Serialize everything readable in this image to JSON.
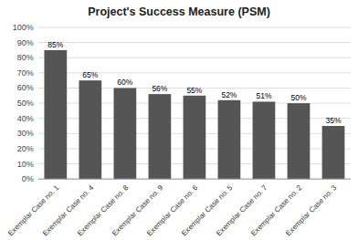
{
  "chart_data": {
    "type": "bar",
    "title": "Project's Success Measure (PSM)",
    "categories": [
      "Exemplar Case no. 1",
      "Exemplar Case no. 4",
      "Exemplar Case no. 8",
      "Exemplar Case no. 9",
      "Exemplar Case no. 6",
      "Exemplar Case no. 5",
      "Exemplar Case no. 7",
      "Exemplar Case no. 2",
      "Exemplar Case no. 3"
    ],
    "values": [
      85,
      65,
      60,
      56,
      55,
      52,
      51,
      50,
      35
    ],
    "value_labels": [
      "85%",
      "65%",
      "60%",
      "56%",
      "55%",
      "52%",
      "51%",
      "50%",
      "35%"
    ],
    "data_labels": true,
    "color": "#555555",
    "ylim": [
      0,
      100
    ],
    "yticks": [
      {
        "value": 0,
        "label": "0%"
      },
      {
        "value": 10,
        "label": "10%"
      },
      {
        "value": 20,
        "label": "20%"
      },
      {
        "value": 30,
        "label": "30%"
      },
      {
        "value": 40,
        "label": "40%"
      },
      {
        "value": 50,
        "label": "50%"
      },
      {
        "value": 60,
        "label": "60%"
      },
      {
        "value": 70,
        "label": "70%"
      },
      {
        "value": 80,
        "label": "80%"
      },
      {
        "value": 90,
        "label": "90%"
      },
      {
        "value": 100,
        "label": "100%"
      }
    ],
    "grid": true
  }
}
